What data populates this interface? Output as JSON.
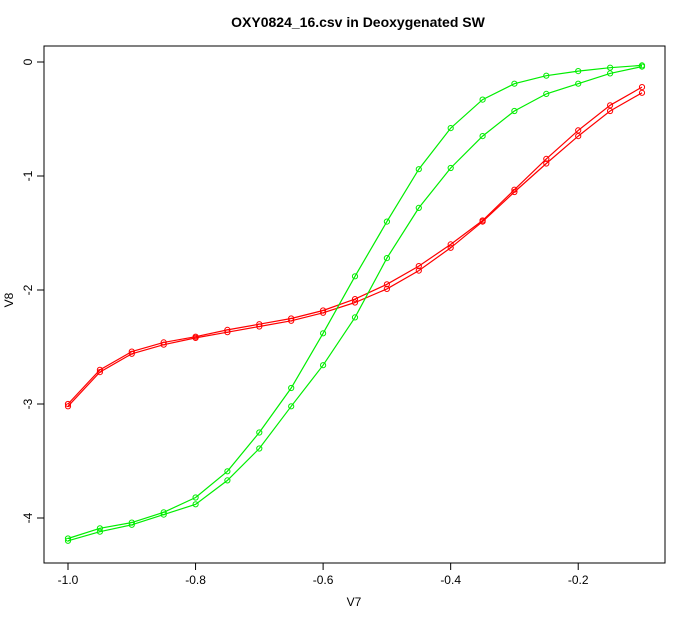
{
  "chart_data": {
    "type": "line",
    "title": "OXY0824_16.csv in Deoxygenated SW",
    "xlabel": "V7",
    "ylabel": "V8",
    "xlim": [
      -1.0,
      -0.1
    ],
    "ylim": [
      -4.2,
      0.0
    ],
    "x_ticks": [
      -1.0,
      -0.8,
      -0.6,
      -0.4,
      -0.2
    ],
    "x_tick_labels": [
      "-1.0",
      "-0.8",
      "-0.6",
      "-0.4",
      "-0.2"
    ],
    "y_ticks": [
      0,
      -1,
      -2,
      -3,
      -4
    ],
    "y_tick_labels": [
      "0",
      "-1",
      "-2",
      "-3",
      "-4"
    ],
    "grid": false,
    "legend": "none",
    "series": [
      {
        "color": "#ff0000",
        "x": [
          -1.0,
          -0.95,
          -0.9,
          -0.85,
          -0.8,
          -0.75,
          -0.7,
          -0.65,
          -0.6,
          -0.55,
          -0.5,
          -0.45,
          -0.4,
          -0.35,
          -0.3,
          -0.25,
          -0.2,
          -0.15,
          -0.1
        ],
        "y": [
          -3.0,
          -2.7,
          -2.54,
          -2.46,
          -2.41,
          -2.35,
          -2.3,
          -2.25,
          -2.18,
          -2.08,
          -1.95,
          -1.79,
          -1.6,
          -1.39,
          -1.12,
          -0.85,
          -0.6,
          -0.38,
          -0.22
        ]
      },
      {
        "color": "#ff0000",
        "x": [
          -1.0,
          -0.95,
          -0.9,
          -0.85,
          -0.8,
          -0.75,
          -0.7,
          -0.65,
          -0.6,
          -0.55,
          -0.5,
          -0.45,
          -0.4,
          -0.35,
          -0.3,
          -0.25,
          -0.2,
          -0.15,
          -0.1
        ],
        "y": [
          -3.02,
          -2.72,
          -2.56,
          -2.48,
          -2.42,
          -2.37,
          -2.32,
          -2.27,
          -2.2,
          -2.11,
          -1.99,
          -1.83,
          -1.63,
          -1.4,
          -1.14,
          -0.89,
          -0.65,
          -0.43,
          -0.27
        ]
      },
      {
        "color": "#00ee00",
        "x": [
          -1.0,
          -0.95,
          -0.9,
          -0.85,
          -0.8,
          -0.75,
          -0.7,
          -0.65,
          -0.6,
          -0.55,
          -0.5,
          -0.45,
          -0.4,
          -0.35,
          -0.3,
          -0.25,
          -0.2,
          -0.15,
          -0.1
        ],
        "y": [
          -4.18,
          -4.09,
          -4.04,
          -3.95,
          -3.82,
          -3.59,
          -3.25,
          -2.86,
          -2.38,
          -1.88,
          -1.4,
          -0.94,
          -0.58,
          -0.33,
          -0.19,
          -0.12,
          -0.08,
          -0.05,
          -0.03
        ]
      },
      {
        "color": "#00ee00",
        "x": [
          -1.0,
          -0.95,
          -0.9,
          -0.85,
          -0.8,
          -0.75,
          -0.7,
          -0.65,
          -0.6,
          -0.55,
          -0.5,
          -0.45,
          -0.4,
          -0.35,
          -0.3,
          -0.25,
          -0.2,
          -0.15,
          -0.1
        ],
        "y": [
          -4.2,
          -4.12,
          -4.06,
          -3.97,
          -3.88,
          -3.67,
          -3.39,
          -3.02,
          -2.66,
          -2.24,
          -1.72,
          -1.28,
          -0.93,
          -0.65,
          -0.43,
          -0.28,
          -0.19,
          -0.1,
          -0.04
        ]
      }
    ]
  }
}
